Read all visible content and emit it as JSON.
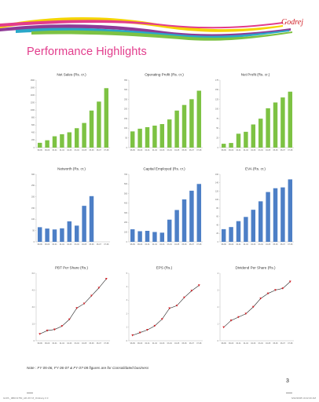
{
  "page": {
    "title": "Performance Highlights",
    "logo_text": "Godrej",
    "note": "Note : FY 05-06, FY 06-07 & FY 07-08 figures are for Consolidated business",
    "page_number": "3",
    "footer_left": "GCPL_08DO1750_AR 2K7-8_Ordinary-3   3",
    "footer_right": "6/22/2008   10:22:20 AM",
    "colors": {
      "green": "#7dc243",
      "blue": "#4d7fc6",
      "red": "#d11f26",
      "accent": "#e23c8c"
    }
  },
  "chart_data": [
    {
      "type": "bar",
      "title": "Net Sales (Rs. cr.)",
      "color": "#7dc243",
      "categories": [
        "98-99",
        "99-00",
        "00-01",
        "01-02",
        "02-03",
        "03-04",
        "04-05",
        "05-06",
        "06-07",
        "07-08"
      ],
      "values": [
        128,
        196,
        302,
        356,
        408,
        518,
        657,
        988,
        1227,
        1585
      ],
      "labels": [
        "",
        "",
        "",
        "",
        "",
        "",
        "",
        "",
        "",
        ""
      ],
      "ylim": [
        0,
        1800
      ],
      "yticks": [
        "0",
        "200",
        "400",
        "600",
        "800",
        "1000",
        "1200",
        "1400",
        "1600",
        "1800"
      ]
    },
    {
      "type": "bar",
      "title": "Operating Profit (Rs. cr.)",
      "color": "#7dc243",
      "categories": [
        "98-99",
        "99-00",
        "00-01",
        "01-02",
        "02-03",
        "03-04",
        "04-05",
        "05-06",
        "06-07",
        "07-08"
      ],
      "values": [
        84,
        98,
        106,
        114,
        122,
        146,
        192,
        221,
        251,
        295
      ],
      "labels": [
        "",
        "",
        "",
        "",
        "",
        "",
        "",
        "",
        "",
        ""
      ],
      "ylim": [
        0,
        350
      ],
      "yticks": [
        "0",
        "50",
        "100",
        "150",
        "200",
        "250",
        "300",
        "350"
      ]
    },
    {
      "type": "bar",
      "title": "Net Profit (Rs. cr.)",
      "color": "#7dc243",
      "categories": [
        "98-99",
        "99-00",
        "00-01",
        "01-02",
        "02-03",
        "03-04",
        "04-05",
        "05-06",
        "06-07",
        "07-08"
      ],
      "values": [
        10,
        12,
        36,
        41,
        60,
        75,
        102,
        117,
        130,
        145
      ],
      "labels": [
        "",
        "",
        "",
        "",
        "",
        "",
        "",
        "",
        "",
        ""
      ],
      "ylim": [
        0,
        175
      ],
      "yticks": [
        "0",
        "25",
        "50",
        "75",
        "100",
        "125",
        "150",
        "175"
      ]
    },
    {
      "type": "bar",
      "title": "Networth (Rs. cr.)",
      "color": "#4d7fc6",
      "categories": [
        "98-99",
        "99-00",
        "00-01",
        "01-02",
        "02-03",
        "03-04",
        "04-05",
        "05-06",
        "06-07",
        "07-08"
      ],
      "values": [
        65,
        59,
        55,
        60,
        91,
        72,
        160,
        203,
        0,
        0
      ],
      "labels": [
        "",
        "",
        "",
        "",
        "",
        "",
        "",
        "",
        "",
        ""
      ],
      "ylim": [
        0,
        300
      ],
      "yticks": [
        "0",
        "50",
        "100",
        "150",
        "200",
        "250",
        "300"
      ]
    },
    {
      "type": "bar",
      "title": "Capital Employed (Rs. cr.)",
      "color": "#4d7fc6",
      "categories": [
        "98-99",
        "99-00",
        "00-01",
        "01-02",
        "02-03",
        "03-04",
        "04-05",
        "05-06",
        "06-07",
        "07-08"
      ],
      "values": [
        130,
        110,
        114,
        102,
        95,
        230,
        330,
        440,
        530,
        600
      ],
      "labels": [
        "",
        "",
        "",
        "",
        "",
        "",
        "",
        "",
        "",
        ""
      ],
      "ylim": [
        0,
        700
      ],
      "yticks": [
        "0",
        "100",
        "200",
        "300",
        "400",
        "500",
        "600",
        "700"
      ]
    },
    {
      "type": "bar",
      "title": "EVA (Rs. cr.)",
      "color": "#4d7fc6",
      "categories": [
        "98-99",
        "99-00",
        "00-01",
        "01-02",
        "02-03",
        "03-04",
        "04-05",
        "05-06",
        "06-07",
        "07-08"
      ],
      "values": [
        30,
        35,
        49,
        59,
        76,
        96,
        118,
        127,
        129,
        148
      ],
      "labels": [
        "",
        "",
        "",
        "",
        "",
        "",
        "",
        "",
        "",
        ""
      ],
      "ylim": [
        0,
        160
      ],
      "yticks": [
        "0",
        "20",
        "40",
        "60",
        "80",
        "100",
        "120",
        "140",
        "160"
      ]
    },
    {
      "type": "line",
      "title": "PBT Per Share (Rs.)",
      "color": "#d11f26",
      "categories": [
        "98-99",
        "99-00",
        "00-01",
        "01-02",
        "02-03",
        "03-04",
        "04-05",
        "05-06",
        "06-07",
        "07-08"
      ],
      "values": [
        0.6,
        0.9,
        1.0,
        1.3,
        1.9,
        2.9,
        3.3,
        4.0,
        4.7,
        5.5
      ],
      "labels": [
        "",
        "",
        "",
        "",
        "",
        "",
        "",
        "",
        "",
        ""
      ],
      "ylim": [
        0,
        6
      ],
      "yticks": [
        "0",
        "1.5",
        "3.0",
        "4.5",
        "6.0"
      ],
      "xlabel": ""
    },
    {
      "type": "line",
      "title": "EPS (Rs.)",
      "color": "#d11f26",
      "categories": [
        "98-99",
        "99-00",
        "00-01",
        "01-02",
        "02-03",
        "03-04",
        "04-05",
        "05-06",
        "06-07",
        "07-08"
      ],
      "values": [
        0.4,
        0.6,
        0.8,
        1.1,
        1.6,
        2.4,
        2.6,
        3.2,
        3.7,
        4.1
      ],
      "labels": [
        "",
        "",
        "",
        "",
        "",
        "",
        "",
        "",
        "",
        ""
      ],
      "ylim": [
        0,
        5
      ],
      "yticks": [
        "0",
        "1",
        "2",
        "3",
        "4",
        "5"
      ]
    },
    {
      "type": "line",
      "title": "Dividend Per Share (Rs.)",
      "color": "#d11f26",
      "categories": [
        "98-99",
        "99-00",
        "00-01",
        "01-02",
        "02-03",
        "03-04",
        "04-05",
        "05-06",
        "06-07",
        "07-08"
      ],
      "values": [
        0.8,
        1.2,
        1.4,
        1.6,
        2.0,
        2.5,
        2.8,
        3.0,
        3.1,
        3.5
      ],
      "labels": [
        "",
        "",
        "",
        "",
        "",
        "",
        "",
        "",
        "",
        ""
      ],
      "ylim": [
        0,
        4
      ],
      "yticks": [
        "0",
        "1",
        "2",
        "3",
        "4"
      ]
    }
  ]
}
